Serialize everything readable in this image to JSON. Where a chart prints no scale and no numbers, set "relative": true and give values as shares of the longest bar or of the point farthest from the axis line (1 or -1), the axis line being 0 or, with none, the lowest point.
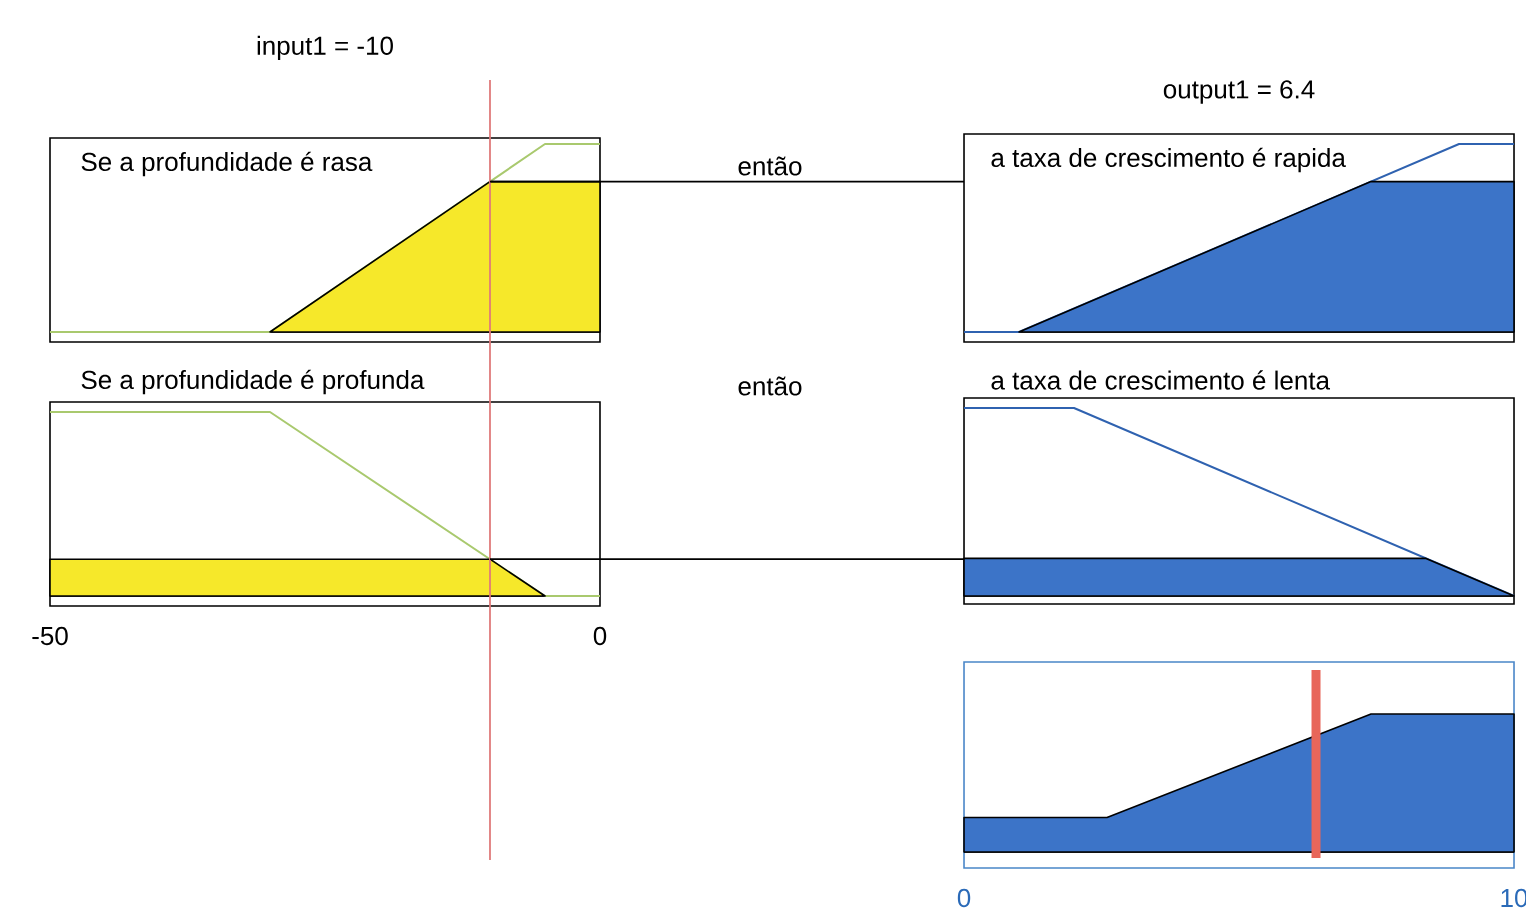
{
  "chart_data": [
    {
      "type": "area",
      "title": "input1 = -10",
      "subtitle": "Se a profundidade é rasa",
      "annotations": [
        "então"
      ],
      "xlim": [
        -50,
        0
      ],
      "relative": true,
      "tick_labels": false,
      "series": [
        {
          "type": "line",
          "color": "#a9c96e",
          "x": [
            -50,
            -30,
            -5,
            0
          ],
          "values": [
            0,
            0,
            1,
            1
          ]
        },
        {
          "type": "area",
          "color": "#f6e82a",
          "x": [
            -30,
            -10,
            0
          ],
          "values": [
            0,
            0.8,
            0.8
          ]
        }
      ],
      "ref_lines": [
        {
          "axis": "x",
          "value": -10,
          "color": "#e07a7a"
        },
        {
          "axis": "y",
          "value": 0.8,
          "color": "#000000"
        }
      ]
    },
    {
      "type": "area",
      "title": "Se a profundidade é profunda",
      "annotations": [
        "então"
      ],
      "xlim": [
        -50,
        0
      ],
      "xticks": [
        -50,
        0
      ],
      "relative": true,
      "tick_labels": "x",
      "series": [
        {
          "type": "line",
          "color": "#a9c96e",
          "x": [
            -50,
            -30,
            -5,
            0
          ],
          "values": [
            1,
            1,
            0,
            0
          ]
        },
        {
          "type": "area",
          "color": "#f6e82a",
          "x": [
            -50,
            -10,
            -5
          ],
          "values": [
            0.2,
            0.2,
            0
          ]
        }
      ],
      "ref_lines": [
        {
          "axis": "x",
          "value": -10,
          "color": "#e07a7a"
        },
        {
          "axis": "y",
          "value": 0.2,
          "color": "#000000"
        }
      ]
    },
    {
      "type": "area",
      "title": "output1 = 6.4",
      "subtitle": "a taxa de crescimento é rapida",
      "xlim": [
        0,
        10
      ],
      "relative": true,
      "tick_labels": false,
      "series": [
        {
          "type": "line",
          "color": "#2f62b0",
          "x": [
            0,
            1,
            9,
            10
          ],
          "values": [
            0,
            0,
            1,
            1
          ]
        },
        {
          "type": "area",
          "color": "#3c74c8",
          "x": [
            1,
            7.4,
            10
          ],
          "values": [
            0,
            0.8,
            0.8
          ]
        }
      ]
    },
    {
      "type": "area",
      "title": "a taxa de crescimento é lenta",
      "xlim": [
        0,
        10
      ],
      "relative": true,
      "tick_labels": false,
      "series": [
        {
          "type": "line",
          "color": "#2f62b0",
          "x": [
            0,
            2,
            10
          ],
          "values": [
            1,
            1,
            0
          ]
        },
        {
          "type": "area",
          "color": "#3c74c8",
          "x": [
            0,
            8.4,
            10
          ],
          "values": [
            0.2,
            0.2,
            0
          ]
        }
      ]
    },
    {
      "type": "area",
      "xlim": [
        0,
        10
      ],
      "xticks": [
        0,
        10
      ],
      "relative": true,
      "tick_labels": "x",
      "series": [
        {
          "type": "area",
          "color": "#3c74c8",
          "x": [
            0,
            2.6,
            7.4,
            10
          ],
          "values": [
            0.25,
            0.25,
            1,
            1
          ]
        }
      ],
      "ref_lines": [
        {
          "axis": "x",
          "value": 6.4,
          "color": "#e8665a"
        }
      ]
    }
  ]
}
